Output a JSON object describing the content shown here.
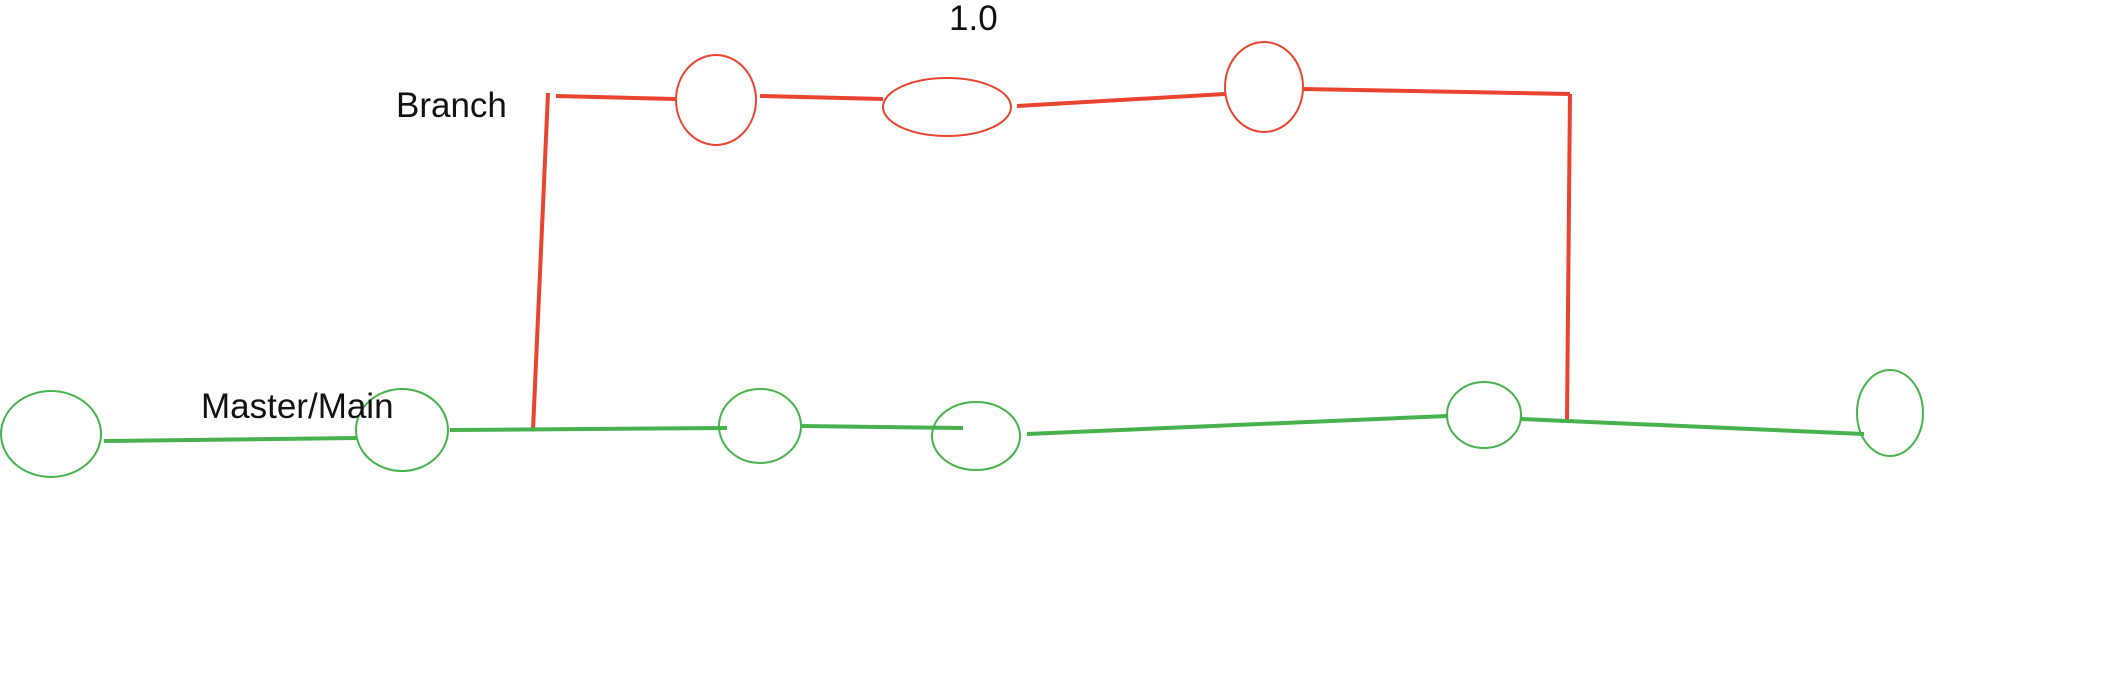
{
  "colors": {
    "branch": "#e8442f",
    "master": "#47b14d",
    "text": "#111111",
    "background": "#ffffff"
  },
  "labels": {
    "branch": "Branch",
    "master": "Master/Main",
    "version": "1.0"
  }
}
